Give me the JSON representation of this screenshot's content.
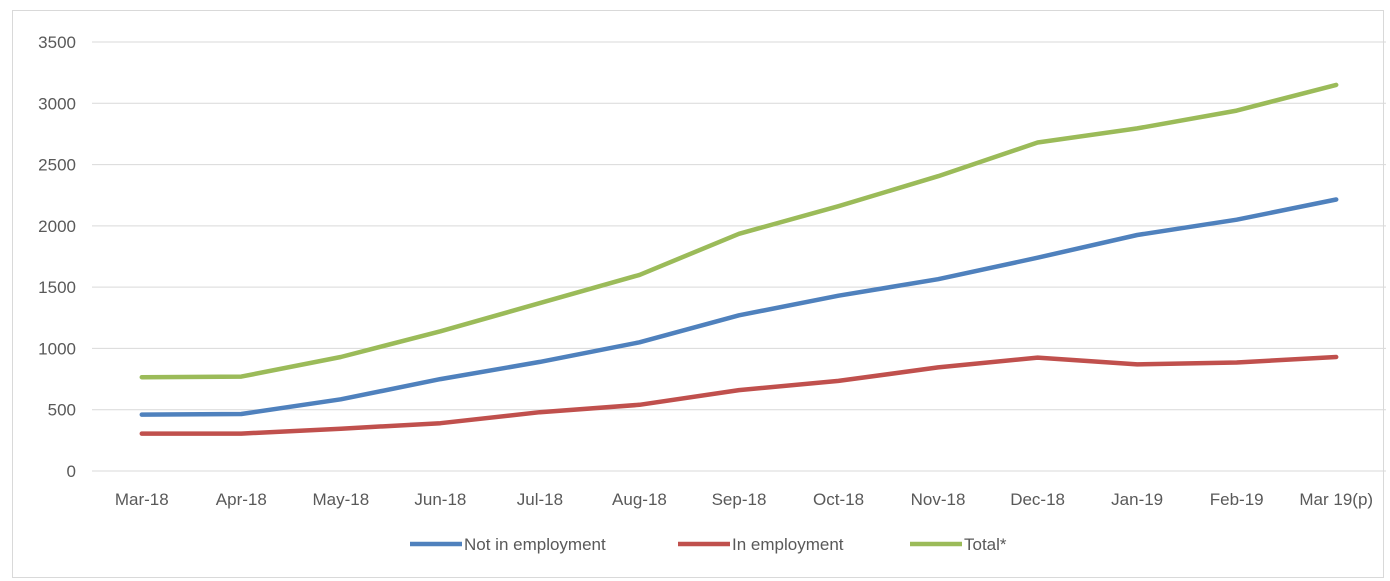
{
  "chart_data": {
    "type": "line",
    "title": "",
    "xlabel": "",
    "ylabel": "",
    "categories": [
      "Mar-18",
      "Apr-18",
      "May-18",
      "Jun-18",
      "Jul-18",
      "Aug-18",
      "Sep-18",
      "Oct-18",
      "Nov-18",
      "Dec-18",
      "Jan-19",
      "Feb-19",
      "Mar 19(p)"
    ],
    "y_ticks": [
      0,
      500,
      1000,
      1500,
      2000,
      2500,
      3000,
      3500
    ],
    "ylim": [
      0,
      3500
    ],
    "grid": "horizontal",
    "legend_position": "bottom",
    "series": [
      {
        "name": "Not in employment",
        "color": "#4f81bd",
        "values": [
          460,
          465,
          585,
          750,
          890,
          1050,
          1270,
          1430,
          1565,
          1740,
          1925,
          2050,
          2215
        ]
      },
      {
        "name": "In employment",
        "color": "#c0504d",
        "values": [
          305,
          305,
          345,
          390,
          480,
          540,
          660,
          735,
          845,
          925,
          870,
          885,
          930
        ]
      },
      {
        "name": "Total*",
        "color": "#9bbb59",
        "values": [
          765,
          770,
          930,
          1140,
          1370,
          1600,
          1935,
          2160,
          2405,
          2680,
          2795,
          2940,
          3150
        ]
      }
    ]
  }
}
